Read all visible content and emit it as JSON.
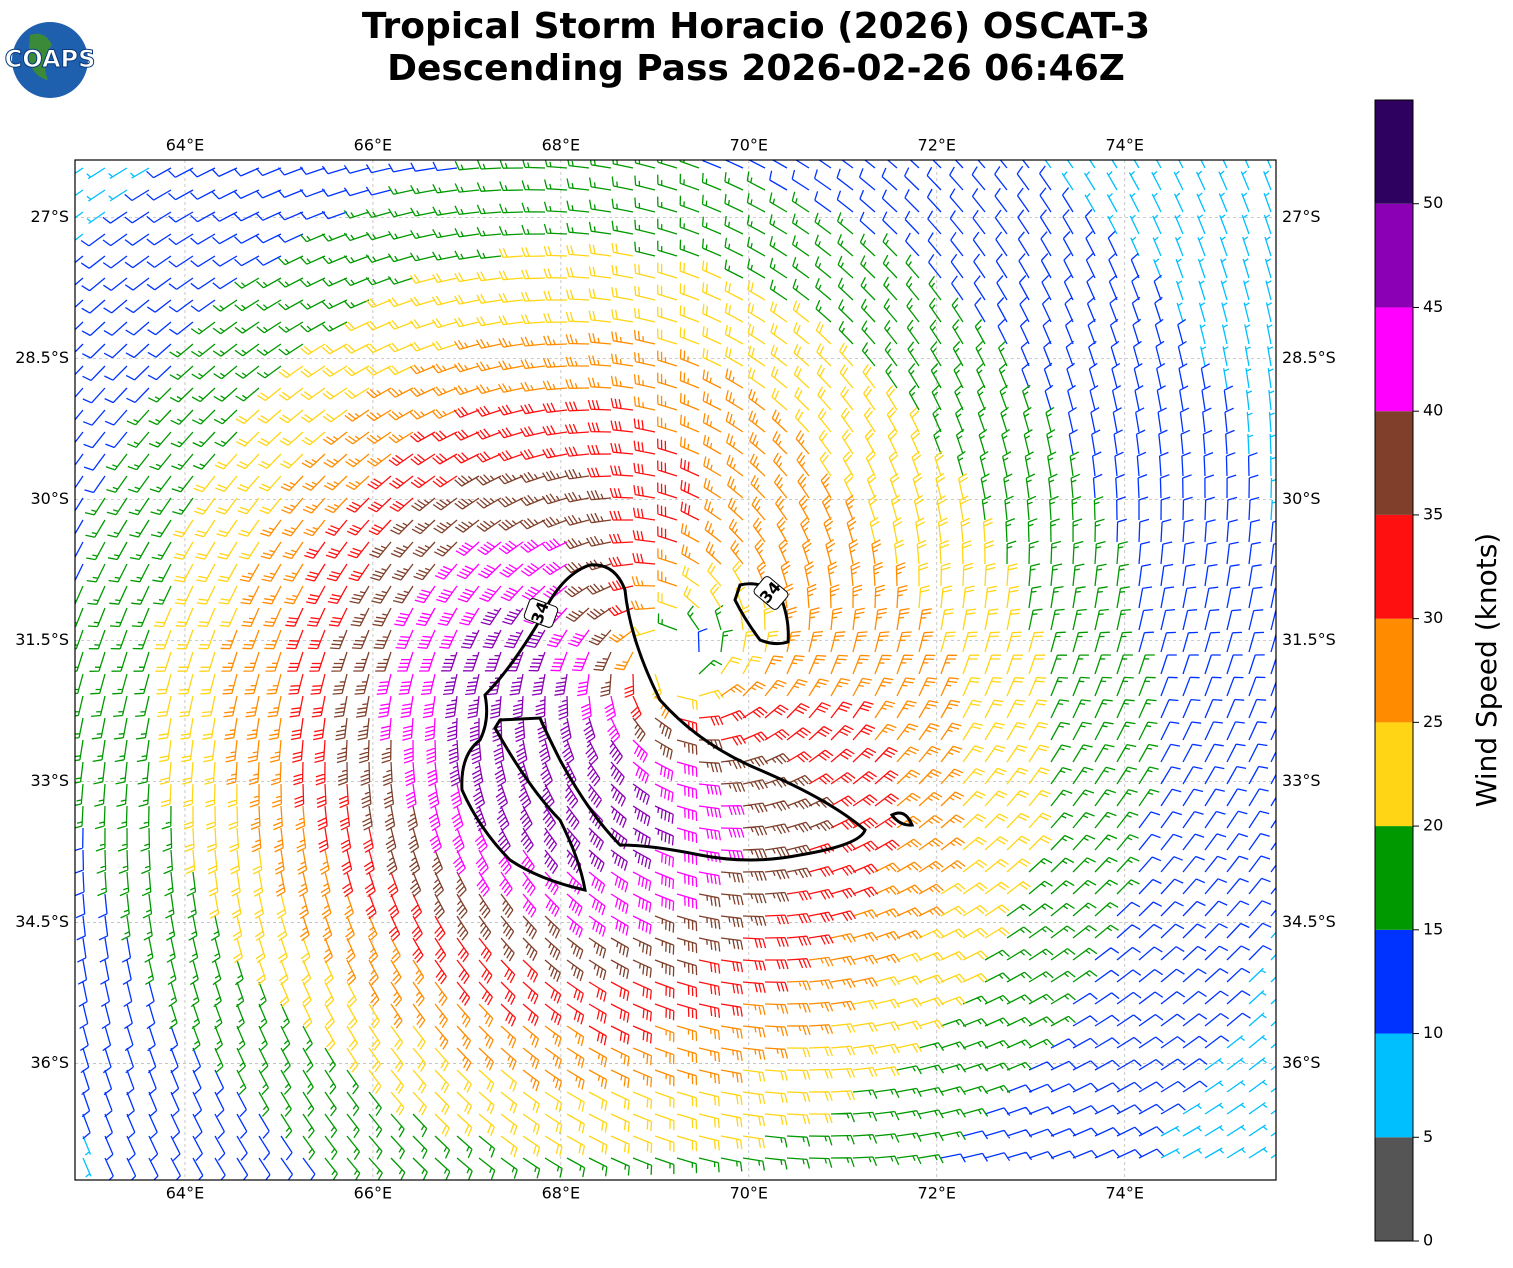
{
  "header": {
    "logo": "COAPS",
    "title": [
      "Tropical Storm Horacio (2026) OSCAT-3",
      "Descending Pass 2026-02-26 06:46Z"
    ]
  },
  "map": {
    "xlim": [
      62.83,
      75.61
    ],
    "ylim": [
      -37.24,
      -26.39
    ],
    "xticks": [
      {
        "value": 64,
        "label": "64°E"
      },
      {
        "value": 66,
        "label": "66°E"
      },
      {
        "value": 68,
        "label": "68°E"
      },
      {
        "value": 70,
        "label": "70°E"
      },
      {
        "value": 72,
        "label": "72°E"
      },
      {
        "value": 74,
        "label": "74°E"
      }
    ],
    "yticks": [
      {
        "value": -27,
        "label": "27°S"
      },
      {
        "value": -28.5,
        "label": "28.5°S"
      },
      {
        "value": -30,
        "label": "30°S"
      },
      {
        "value": -31.5,
        "label": "31.5°S"
      },
      {
        "value": -33,
        "label": "33°S"
      },
      {
        "value": -34.5,
        "label": "34.5°S"
      },
      {
        "value": -36,
        "label": "36°S"
      }
    ],
    "grid": true,
    "contour_labels": [
      "34",
      "34"
    ]
  },
  "colorbar": {
    "label": "Wind Speed (knots)",
    "lim": [
      0,
      55
    ],
    "ticks": [
      0,
      5,
      10,
      15,
      20,
      25,
      30,
      35,
      40,
      45,
      50
    ],
    "colors": [
      "#555555",
      "#00bfff",
      "#0033ff",
      "#009900",
      "#ffd515",
      "#ff8c00",
      "#ff1010",
      "#7f3f2a",
      "#ff00ff",
      "#8b00b5",
      "#2e0060"
    ]
  }
}
